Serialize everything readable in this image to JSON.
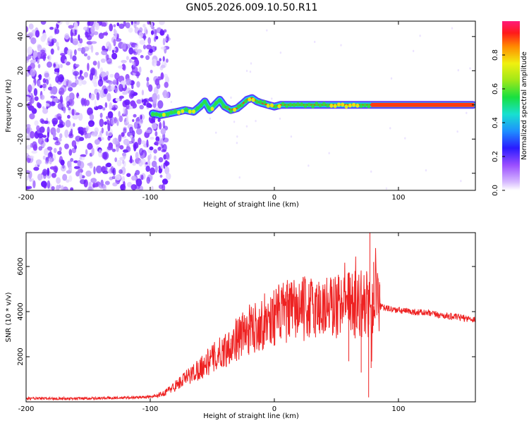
{
  "figure_title": "GN05.2026.009.10.50.R11",
  "chart_data": [
    {
      "type": "heatmap",
      "name": "spectrogram",
      "xlabel": "Height of straight line (km)",
      "ylabel": "Frequency (Hz)",
      "xlim": [
        -200,
        162
      ],
      "ylim": [
        -50,
        49
      ],
      "xticks": [
        -200,
        -100,
        0,
        100
      ],
      "yticks": [
        -40,
        -20,
        0,
        20,
        40
      ],
      "colorbar": {
        "label": "Normalized spectral amplitude",
        "range": [
          0,
          1
        ],
        "ticks": [
          0.0,
          0.2,
          0.4,
          0.6,
          0.8
        ]
      },
      "noise_region_x": [
        -200,
        -90
      ],
      "track": [
        [
          -98,
          -5
        ],
        [
          -92,
          -6
        ],
        [
          -85,
          -5
        ],
        [
          -78,
          -4
        ],
        [
          -72,
          -3
        ],
        [
          -65,
          -4
        ],
        [
          -60,
          -1
        ],
        [
          -56,
          2
        ],
        [
          -52,
          -3
        ],
        [
          -48,
          0
        ],
        [
          -44,
          3
        ],
        [
          -40,
          -1
        ],
        [
          -35,
          -3
        ],
        [
          -30,
          -2
        ],
        [
          -25,
          1
        ],
        [
          -22,
          3
        ],
        [
          -18,
          4
        ],
        [
          -14,
          2
        ],
        [
          -10,
          1
        ],
        [
          -5,
          0
        ],
        [
          0,
          -1
        ],
        [
          5,
          0
        ],
        [
          10,
          0
        ],
        [
          20,
          0
        ],
        [
          40,
          0
        ],
        [
          60,
          0
        ],
        [
          75,
          0
        ],
        [
          80,
          0
        ],
        [
          100,
          0
        ],
        [
          130,
          0
        ],
        [
          160,
          0
        ]
      ]
    },
    {
      "type": "line",
      "name": "snr",
      "xlabel": "Height of straight line (km)",
      "ylabel": "SNR (10 * v/v)",
      "xlim": [
        -200,
        162
      ],
      "ylim": [
        0,
        7500
      ],
      "xticks": [
        -200,
        -100,
        0,
        100
      ],
      "yticks": [
        2000,
        4000,
        6000
      ],
      "series": [
        {
          "name": "SNR",
          "color": "#ee2222",
          "envelope": [
            [
              -200,
              150
            ],
            [
              -160,
              150
            ],
            [
              -120,
              180
            ],
            [
              -100,
              220
            ],
            [
              -90,
              350
            ],
            [
              -80,
              700
            ],
            [
              -70,
              1100
            ],
            [
              -60,
              1500
            ],
            [
              -50,
              1900
            ],
            [
              -40,
              2300
            ],
            [
              -30,
              2800
            ],
            [
              -20,
              3200
            ],
            [
              -10,
              3500
            ],
            [
              0,
              3800
            ],
            [
              10,
              4000
            ],
            [
              20,
              4100
            ],
            [
              30,
              4150
            ],
            [
              40,
              4200
            ],
            [
              50,
              4250
            ],
            [
              60,
              4300
            ],
            [
              70,
              4350
            ],
            [
              80,
              4300
            ],
            [
              90,
              4150
            ],
            [
              100,
              4050
            ],
            [
              120,
              3950
            ],
            [
              140,
              3800
            ],
            [
              162,
              3650
            ]
          ]
        }
      ],
      "peaks": [
        [
          -35,
          2800
        ],
        [
          -20,
          3400
        ],
        [
          65,
          5800
        ],
        [
          77,
          7500
        ],
        [
          80,
          6200
        ],
        [
          85,
          5200
        ]
      ],
      "dips": [
        [
          76,
          200
        ],
        [
          78,
          1500
        ],
        [
          60,
          1800
        ],
        [
          70,
          1300
        ]
      ]
    }
  ]
}
